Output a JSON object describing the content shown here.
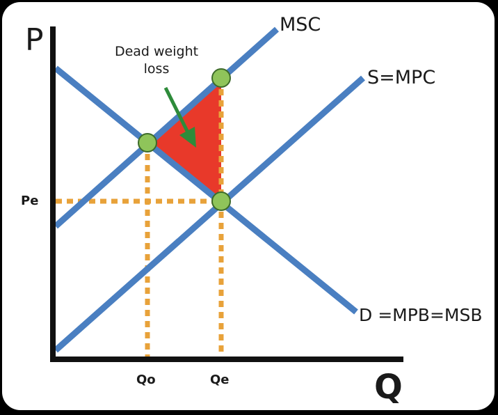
{
  "axes": {
    "y_label": "P",
    "x_label": "Q"
  },
  "curves": {
    "msc": "MSC",
    "supply": "S=MPC",
    "demand": "D =MPB=MSB"
  },
  "ticks": {
    "price_eq": "Pe",
    "q_optimal": "Qo",
    "q_eq": "Qe"
  },
  "annotation": {
    "dead_weight_loss": "Dead weight loss"
  },
  "colors": {
    "curve": "#4a7fc1",
    "axis": "#111111",
    "dotted": "#e8a23a",
    "triangle": "#e8392a",
    "point": "#8fc45a",
    "arrow": "#2e8b3a",
    "background": "#ffffff"
  }
}
